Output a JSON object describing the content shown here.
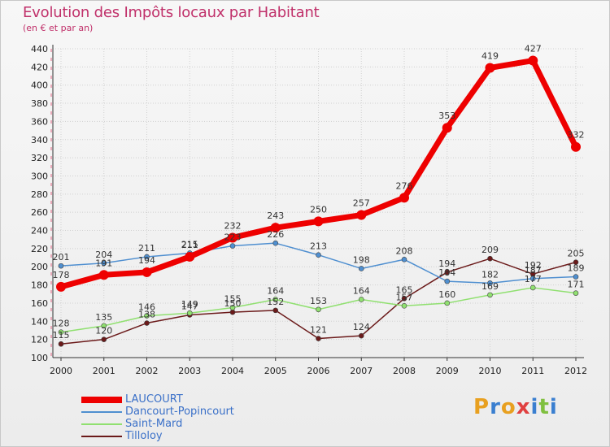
{
  "header": {
    "title": "Evolution des Impôts locaux par Habitant",
    "subtitle": "(en € et par an)"
  },
  "logo": {
    "text": "Proxiti",
    "letters": [
      {
        "ch": "P",
        "color": "#e8a020"
      },
      {
        "ch": "r",
        "color": "#3a7fd0"
      },
      {
        "ch": "o",
        "color": "#e8a020"
      },
      {
        "ch": "x",
        "color": "#e04040"
      },
      {
        "ch": "i",
        "color": "#3a7fd0"
      },
      {
        "ch": "t",
        "color": "#80c040"
      },
      {
        "ch": "i",
        "color": "#3a7fd0"
      }
    ]
  },
  "chart_data": {
    "type": "line",
    "title": "Evolution des Impôts locaux par Habitant",
    "subtitle": "(en € et par an)",
    "xlabel": "",
    "ylabel": "",
    "x": [
      "2000",
      "2001",
      "2002",
      "2003",
      "2004",
      "2005",
      "2006",
      "2007",
      "2008",
      "2009",
      "2010",
      "2011",
      "2012"
    ],
    "ylim": [
      100,
      440
    ],
    "yticks": [
      100,
      120,
      140,
      160,
      180,
      200,
      220,
      240,
      260,
      280,
      300,
      320,
      340,
      360,
      380,
      400,
      420,
      440
    ],
    "grid": true,
    "legend_position": "bottom-left",
    "series": [
      {
        "name": "LAUCOURT",
        "color": "#ee0000",
        "values": [
          178,
          191,
          194,
          211,
          232,
          243,
          250,
          257,
          276,
          353,
          419,
          427,
          332
        ],
        "labels": [
          "178",
          "191",
          "194",
          "211",
          "232",
          "243",
          "250",
          "257",
          "276",
          "353",
          "419",
          "427",
          "332"
        ]
      },
      {
        "name": "Dancourt-Popincourt",
        "color": "#4f8fd0",
        "values": [
          201,
          204,
          211,
          215,
          223,
          226,
          213,
          198,
          208,
          184,
          182,
          187,
          189
        ],
        "labels": [
          "201",
          "204",
          "211",
          "215",
          "223",
          "226",
          "213",
          "198",
          "208",
          "184",
          "182",
          "187",
          "189"
        ]
      },
      {
        "name": "Saint-Mard",
        "color": "#90e070",
        "values": [
          128,
          135,
          146,
          149,
          155,
          164,
          153,
          164,
          157,
          160,
          169,
          177,
          171
        ],
        "labels": [
          "128",
          "135",
          "146",
          "149",
          "155",
          "164",
          "153",
          "164",
          "157",
          "160",
          "169",
          "177",
          "171"
        ]
      },
      {
        "name": "Tilloloy",
        "color": "#6b1a1a",
        "values": [
          115,
          120,
          138,
          147,
          150,
          152,
          121,
          124,
          165,
          194,
          209,
          192,
          205
        ],
        "labels": [
          "115",
          "120",
          "138",
          "147",
          "150",
          "152",
          "121",
          "124",
          "165",
          "194",
          "209",
          "192",
          "205"
        ]
      }
    ]
  }
}
